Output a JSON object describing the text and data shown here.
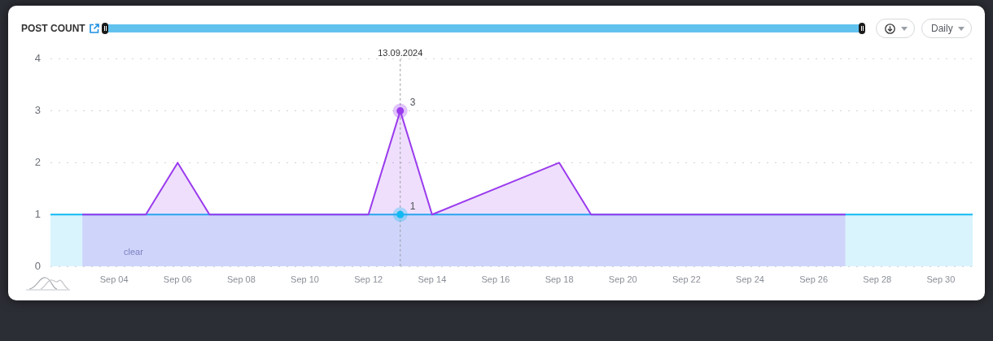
{
  "chart_data": {
    "type": "area",
    "title": "POST COUNT",
    "annotations": [
      "clear",
      "Daily"
    ],
    "xlim": [
      "2024-09-02",
      "2024-10-01"
    ],
    "xticks": [
      {
        "value": "2024-09-04",
        "label": "Sep 04"
      },
      {
        "value": "2024-09-06",
        "label": "Sep 06"
      },
      {
        "value": "2024-09-08",
        "label": "Sep 08"
      },
      {
        "value": "2024-09-10",
        "label": "Sep 10"
      },
      {
        "value": "2024-09-12",
        "label": "Sep 12"
      },
      {
        "value": "2024-09-14",
        "label": "Sep 14"
      },
      {
        "value": "2024-09-16",
        "label": "Sep 16"
      },
      {
        "value": "2024-09-18",
        "label": "Sep 18"
      },
      {
        "value": "2024-09-20",
        "label": "Sep 20"
      },
      {
        "value": "2024-09-22",
        "label": "Sep 22"
      },
      {
        "value": "2024-09-24",
        "label": "Sep 24"
      },
      {
        "value": "2024-09-26",
        "label": "Sep 26"
      },
      {
        "value": "2024-09-28",
        "label": "Sep 28"
      },
      {
        "value": "2024-09-30",
        "label": "Sep 30"
      }
    ],
    "ylim": [
      0,
      4
    ],
    "yticks": [
      0,
      1,
      2,
      3,
      4
    ],
    "grid": "y",
    "ref_lines": [
      {
        "axis": "x",
        "value": "2024-09-13",
        "label": "13.09.2024",
        "line_style": "dashed",
        "color": "#9a9ca3"
      }
    ],
    "series": [
      {
        "color": "#12b9f3",
        "x": [
          "2024-09-02",
          "2024-09-03",
          "2024-09-04",
          "2024-09-05",
          "2024-09-06",
          "2024-09-07",
          "2024-09-08",
          "2024-09-09",
          "2024-09-10",
          "2024-09-11",
          "2024-09-12",
          "2024-09-13",
          "2024-09-14",
          "2024-09-15",
          "2024-09-16",
          "2024-09-17",
          "2024-09-18",
          "2024-09-19",
          "2024-09-20",
          "2024-09-21",
          "2024-09-22",
          "2024-09-23",
          "2024-09-24",
          "2024-09-25",
          "2024-09-26",
          "2024-09-27",
          "2024-09-28",
          "2024-09-29",
          "2024-09-30",
          "2024-10-01"
        ],
        "values": [
          1,
          1,
          1,
          1,
          1,
          1,
          1,
          1,
          1,
          1,
          1,
          1,
          1,
          1,
          1,
          1,
          1,
          1,
          1,
          1,
          1,
          1,
          1,
          1,
          1,
          1,
          1,
          1,
          1,
          1
        ],
        "value_labels": [
          null,
          null,
          null,
          null,
          null,
          null,
          null,
          null,
          null,
          null,
          null,
          "1",
          null,
          null,
          null,
          null,
          null,
          null,
          null,
          null,
          null,
          null,
          null,
          null,
          null,
          null,
          null,
          null,
          null,
          null
        ]
      },
      {
        "color": "#9a3bed",
        "x": [
          "2024-09-03",
          "2024-09-04",
          "2024-09-05",
          "2024-09-06",
          "2024-09-07",
          "2024-09-08",
          "2024-09-09",
          "2024-09-10",
          "2024-09-11",
          "2024-09-12",
          "2024-09-13",
          "2024-09-14",
          "2024-09-18",
          "2024-09-19",
          "2024-09-20",
          "2024-09-21",
          "2024-09-22",
          "2024-09-23",
          "2024-09-24",
          "2024-09-25",
          "2024-09-26",
          "2024-09-27"
        ],
        "values": [
          1,
          1,
          1,
          2,
          1,
          1,
          1,
          1,
          1,
          1,
          3,
          1,
          2,
          1,
          1,
          1,
          1,
          1,
          1,
          1,
          1,
          1
        ],
        "value_labels": [
          null,
          null,
          null,
          null,
          null,
          null,
          null,
          null,
          null,
          null,
          "3",
          null,
          null,
          null,
          null,
          null,
          null,
          null,
          null,
          null,
          null,
          null
        ]
      }
    ]
  }
}
